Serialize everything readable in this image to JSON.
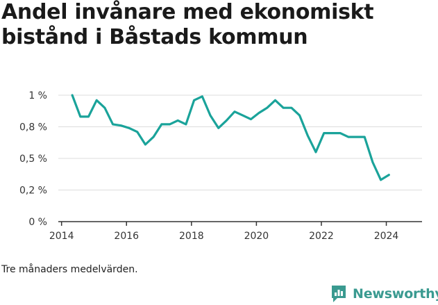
{
  "title": "Andel invånare med ekonomiskt bistånd i Båstads kommun",
  "note": "Tre månaders medelvärden.",
  "brand": {
    "name": "Newsworthy",
    "icon": "newsworthy-logo-icon",
    "color": "#3a9a90"
  },
  "chart_data": {
    "type": "line",
    "title": "Andel invånare med ekonomiskt bistånd i Båstads kommun",
    "xlabel": "",
    "ylabel": "",
    "xlim": [
      2013.9,
      2025.1
    ],
    "ylim": [
      0,
      1
    ],
    "x_ticks": [
      2014,
      2016,
      2018,
      2020,
      2022,
      2024
    ],
    "x_tick_labels": [
      "2014",
      "2016",
      "2018",
      "2020",
      "2022",
      "2024"
    ],
    "y_ticks": [
      0,
      0.25,
      0.5,
      0.75,
      1
    ],
    "y_tick_labels": [
      "0 %",
      "0,2 %",
      "0,5 %",
      "0,8 %",
      "1 %"
    ],
    "grid": "horizontal",
    "line_color": "#1aa39a",
    "series": [
      {
        "x": [
          2014.33,
          2014.58,
          2014.83,
          2015.08,
          2015.33,
          2015.58,
          2015.83,
          2016.08,
          2016.33,
          2016.58,
          2016.83,
          2017.08,
          2017.33,
          2017.58,
          2017.83,
          2018.08,
          2018.33,
          2018.58,
          2018.83,
          2019.08,
          2019.33,
          2019.58,
          2019.83,
          2020.08,
          2020.33,
          2020.58,
          2020.83,
          2021.08,
          2021.33,
          2021.58,
          2021.83,
          2022.08,
          2022.33,
          2022.58,
          2022.83,
          2023.08,
          2023.33,
          2023.58,
          2023.83,
          2024.08
        ],
        "values": [
          1.0,
          0.83,
          0.83,
          0.96,
          0.9,
          0.77,
          0.76,
          0.74,
          0.71,
          0.61,
          0.67,
          0.77,
          0.77,
          0.8,
          0.77,
          0.96,
          0.99,
          0.84,
          0.74,
          0.8,
          0.87,
          0.84,
          0.81,
          0.86,
          0.9,
          0.96,
          0.9,
          0.9,
          0.84,
          0.68,
          0.55,
          0.7,
          0.7,
          0.7,
          0.67,
          0.67,
          0.67,
          0.47,
          0.33,
          0.37
        ]
      }
    ]
  }
}
